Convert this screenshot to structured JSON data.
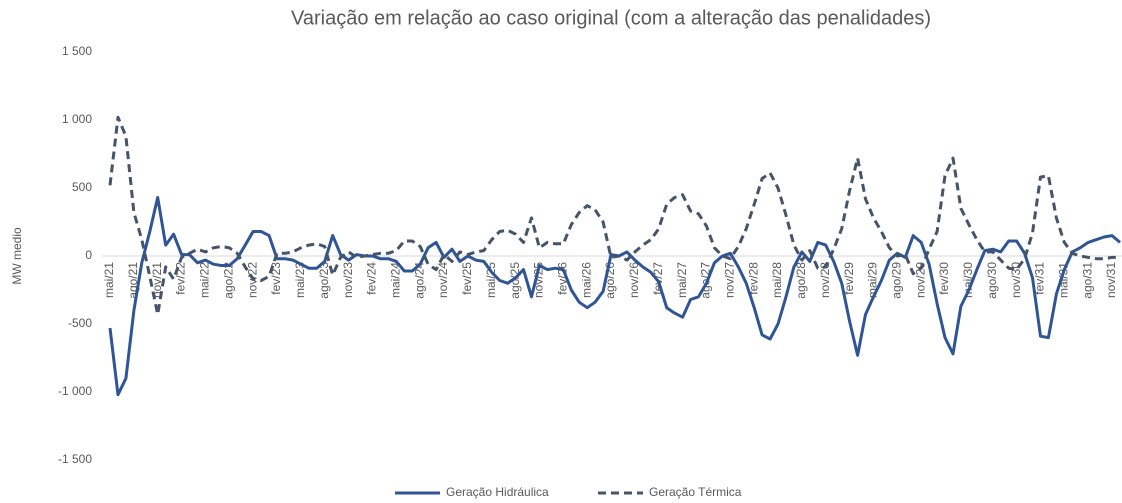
{
  "chart_data": {
    "type": "line",
    "title": "Variação em relação ao caso original (com a alteração das penalidades)",
    "y_label": "MW medio",
    "categories": [
      "mai/21",
      null,
      null,
      "ago/21",
      null,
      null,
      "nov/21",
      null,
      null,
      "fev/22",
      null,
      null,
      "mai/22",
      null,
      null,
      "ago/22",
      null,
      null,
      "nov/22",
      null,
      null,
      "fev/23",
      null,
      null,
      "mai/23",
      null,
      null,
      "ago/23",
      null,
      null,
      "nov/23",
      null,
      null,
      "fev/24",
      null,
      null,
      "mai/24",
      null,
      null,
      "ago/24",
      null,
      null,
      "nov/24",
      null,
      null,
      "fev/25",
      null,
      null,
      "mai/25",
      null,
      null,
      "ago/25",
      null,
      null,
      "nov/25",
      null,
      null,
      "fev/26",
      null,
      null,
      "mai/26",
      null,
      null,
      "ago/26",
      null,
      null,
      "nov/26",
      null,
      null,
      "fev/27",
      null,
      null,
      "mai/27",
      null,
      null,
      "ago/27",
      null,
      null,
      "nov/27",
      null,
      null,
      "fev/28",
      null,
      null,
      "mai/28",
      null,
      null,
      "ago/28",
      null,
      null,
      "nov/28",
      null,
      null,
      "fev/29",
      null,
      null,
      "mai/29",
      null,
      null,
      "ago/29",
      null,
      null,
      "nov/29",
      null,
      null,
      "fev/30",
      null,
      null,
      "mai/30",
      null,
      null,
      "ago/30",
      null,
      null,
      "nov/30",
      null,
      null,
      "fev/31",
      null,
      null,
      "mai/31",
      null,
      null,
      "ago/31",
      null,
      null,
      "nov/31",
      null
    ],
    "series": [
      {
        "name": "Geração Hidráulica",
        "color": "#2f5597",
        "dash": false,
        "values": [
          -530,
          -1020,
          -900,
          -400,
          -50,
          180,
          430,
          80,
          160,
          10,
          10,
          -50,
          -30,
          -60,
          -70,
          -70,
          -20,
          80,
          180,
          180,
          150,
          -20,
          -20,
          -30,
          -60,
          -90,
          -90,
          -40,
          150,
          10,
          -30,
          10,
          0,
          0,
          -20,
          -20,
          -40,
          -110,
          -110,
          -60,
          60,
          100,
          -10,
          50,
          -40,
          0,
          -30,
          -40,
          -120,
          -180,
          -200,
          -160,
          -100,
          -300,
          -70,
          -100,
          -90,
          -100,
          -250,
          -340,
          -380,
          -340,
          -260,
          10,
          0,
          30,
          -30,
          -80,
          -120,
          -190,
          -380,
          -420,
          -450,
          -320,
          -300,
          -200,
          -50,
          0,
          20,
          -80,
          -200,
          -380,
          -580,
          -610,
          -500,
          -300,
          -80,
          30,
          -40,
          100,
          80,
          -40,
          -200,
          -480,
          -730,
          -430,
          -300,
          -180,
          -30,
          20,
          -10,
          150,
          100,
          -60,
          -350,
          -600,
          -720,
          -370,
          -250,
          -100,
          40,
          50,
          30,
          110,
          110,
          20,
          -160,
          -590,
          -600,
          -280,
          -100,
          30,
          60,
          100,
          120,
          140,
          150,
          100
        ]
      },
      {
        "name": "Geração Térmica",
        "color": "#44546a",
        "dash": true,
        "values": [
          520,
          1020,
          880,
          320,
          120,
          -150,
          -430,
          -80,
          -170,
          -10,
          20,
          50,
          30,
          60,
          70,
          60,
          20,
          -80,
          -170,
          -180,
          -150,
          20,
          20,
          30,
          60,
          80,
          90,
          70,
          -140,
          -10,
          30,
          -10,
          0,
          10,
          20,
          20,
          40,
          110,
          110,
          70,
          -60,
          -100,
          10,
          -40,
          30,
          10,
          30,
          40,
          120,
          180,
          190,
          160,
          100,
          280,
          60,
          100,
          90,
          90,
          230,
          320,
          370,
          340,
          250,
          -10,
          0,
          -30,
          30,
          80,
          120,
          200,
          380,
          430,
          450,
          330,
          310,
          220,
          60,
          0,
          -20,
          70,
          200,
          380,
          570,
          610,
          500,
          300,
          80,
          -30,
          40,
          -90,
          -80,
          50,
          200,
          480,
          720,
          420,
          280,
          180,
          60,
          0,
          10,
          -130,
          -90,
          50,
          180,
          590,
          720,
          350,
          230,
          120,
          30,
          30,
          -30,
          -90,
          -100,
          -20,
          170,
          580,
          590,
          280,
          100,
          20,
          0,
          -10,
          -20,
          -20,
          -10,
          -10
        ]
      }
    ],
    "ylim": [
      -1500,
      1500
    ],
    "yticks": [
      {
        "value": -1500,
        "label": "-1 500"
      },
      {
        "value": -1000,
        "label": "-1 000"
      },
      -500,
      0,
      500,
      {
        "value": 1000,
        "label": "1 000"
      },
      {
        "value": 1500,
        "label": "1 500"
      }
    ],
    "grid": false,
    "legend": "bottom"
  }
}
